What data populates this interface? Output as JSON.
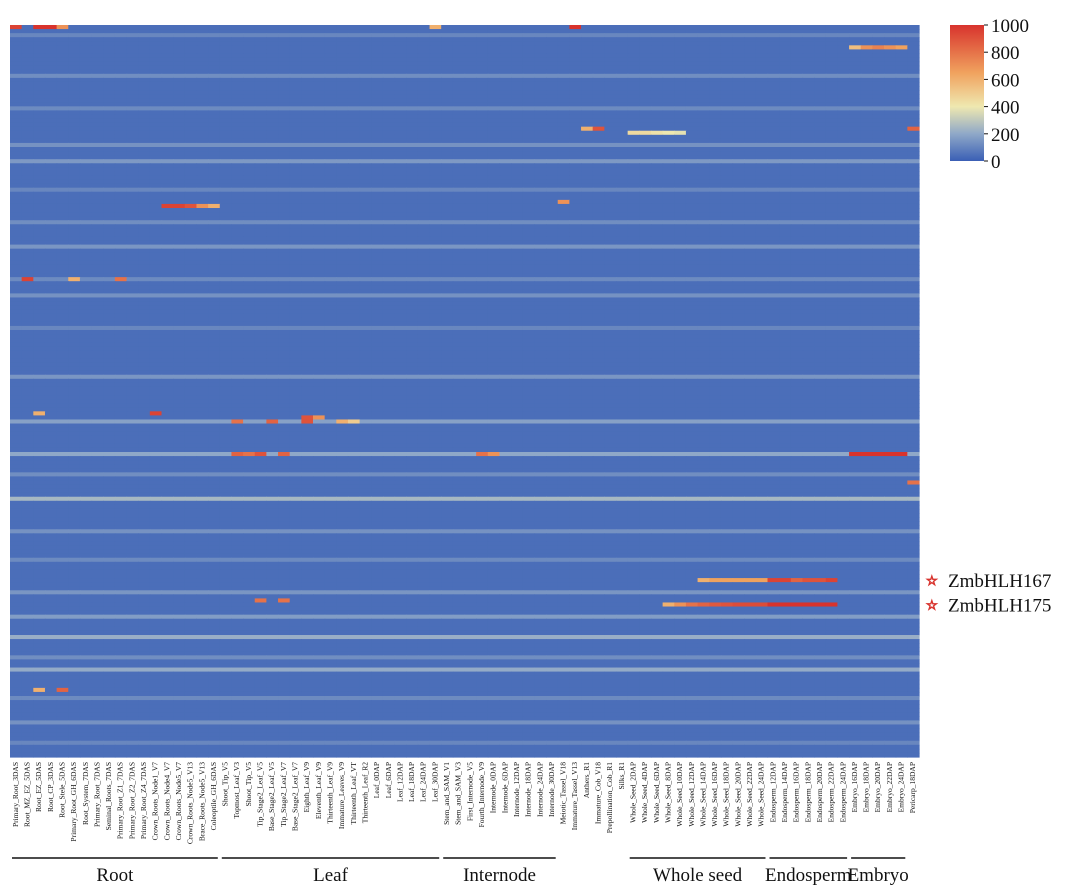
{
  "chart_data": {
    "type": "heatmap",
    "title": "",
    "colorbar": {
      "min": 0,
      "max": 1000,
      "ticks": [
        "1000",
        "800",
        "600",
        "400",
        "200",
        "0"
      ],
      "colors": [
        "#3a5fb5",
        "#8fa8c8",
        "#efe8b0",
        "#f0a25e",
        "#d8332d"
      ]
    },
    "columns": [
      "Primary_Root_3DAS",
      "Root_MZ_EZ_5DAS",
      "Root_EZ_5DAS",
      "Root_CP_3DAS",
      "Root_Stele_5DAS",
      "Primary_Root_GH_6DAS",
      "Root_System_7DAS",
      "Primary_Root_7DAS",
      "Seminal_Roots_7DAS",
      "Primary_Root_Z1_7DAS",
      "Primary_Root_Z2_7DAS",
      "Primary_Root_Z4_7DAS",
      "Crown_Roots_Node1_V7",
      "Crown_Roots_Node4_V7",
      "Crown_Roots_Node5_V7",
      "Crown_Roots_Node5_V13",
      "Brace_Roots_Node5_V13",
      "Coleoptile_GH_6DAS",
      "Shoot_Tip_V5",
      "Topmost_Leaf_V3",
      "Shoot_Tip_V5",
      "Tip_Stage2_Leaf_V5",
      "Base_Stage2_Leaf_V5",
      "Tip_Stage2_Leaf_V7",
      "Base_Stage2_Leaf_V7",
      "Eighth_Leaf_V9",
      "Eleventh_Leaf_V9",
      "Thirteenth_Leaf_V9",
      "Immature_Leaves_V9",
      "Thirteenth_Leaf_VT",
      "Thirteenth_Leaf_R2",
      "Leaf_0DAP",
      "Leaf_6DAP",
      "Leaf_12DAP",
      "Leaf_18DAP",
      "Leaf_24DAP",
      "Leaf_30DAP",
      "Stem_and_SAM_V1",
      "Stem_and_SAM_V3",
      "First_Internode_V5",
      "Fourth_Internode_V9",
      "Internode_0DAP",
      "Internode_6DAP",
      "Internode_12DAP",
      "Internode_18DAP",
      "Internode_24DAP",
      "Internode_30DAP",
      "Meiotic_Tassel_V18",
      "Immature_Tassel_V13",
      "Anthers_R1",
      "Immature_Cob_V18",
      "Prepollination_Cob_R1",
      "Silks_R1",
      "Whole_Seed_2DAP",
      "Whole_Seed_4DAP",
      "Whole_Seed_6DAP",
      "Whole_Seed_8DAP",
      "Whole_Seed_10DAP",
      "Whole_Seed_12DAP",
      "Whole_Seed_14DAP",
      "Whole_Seed_16DAP",
      "Whole_Seed_18DAP",
      "Whole_Seed_20DAP",
      "Whole_Seed_22DAP",
      "Whole_Seed_24DAP",
      "Endosperm_12DAP",
      "Endosperm_14DAP",
      "Endosperm_16DAP",
      "Endosperm_18DAP",
      "Endosperm_20DAP",
      "Endosperm_22DAP",
      "Endosperm_24DAP",
      "Embryo_16DAP",
      "Embryo_18DAP",
      "Embryo_20DAP",
      "Embryo_22DAP",
      "Embryo_24DAP",
      "Pericarp_18DAP"
    ],
    "groups": [
      {
        "label": "Root",
        "from": 0,
        "to": 17
      },
      {
        "label": "Leaf",
        "from": 18,
        "to": 36
      },
      {
        "label": "Internode",
        "from": 37,
        "to": 46
      },
      {
        "label": "Whole seed",
        "from": 53,
        "to": 64
      },
      {
        "label": "Endosperm",
        "from": 65,
        "to": 71
      },
      {
        "label": "Embryo",
        "from": 72,
        "to": 76
      }
    ],
    "n_rows": 180,
    "background_value": 40,
    "bands": [
      {
        "row": 2,
        "value": 110
      },
      {
        "row": 12,
        "value": 130
      },
      {
        "row": 20,
        "value": 120
      },
      {
        "row": 29,
        "value": 140
      },
      {
        "row": 33,
        "value": 160
      },
      {
        "row": 40,
        "value": 110
      },
      {
        "row": 48,
        "value": 130
      },
      {
        "row": 54,
        "value": 150
      },
      {
        "row": 62,
        "value": 120
      },
      {
        "row": 66,
        "value": 140
      },
      {
        "row": 74,
        "value": 110
      },
      {
        "row": 86,
        "value": 150
      },
      {
        "row": 97,
        "value": 180
      },
      {
        "row": 105,
        "value": 200
      },
      {
        "row": 110,
        "value": 130
      },
      {
        "row": 116,
        "value": 250
      },
      {
        "row": 124,
        "value": 140
      },
      {
        "row": 131,
        "value": 120
      },
      {
        "row": 139,
        "value": 150
      },
      {
        "row": 145,
        "value": 170
      },
      {
        "row": 150,
        "value": 220
      },
      {
        "row": 155,
        "value": 130
      },
      {
        "row": 158,
        "value": 210
      },
      {
        "row": 165,
        "value": 120
      },
      {
        "row": 171,
        "value": 140
      },
      {
        "row": 176,
        "value": 110
      }
    ],
    "cells": [
      {
        "row": 0,
        "col": 0,
        "value": 950
      },
      {
        "row": 0,
        "col": 2,
        "value": 1000
      },
      {
        "row": 0,
        "col": 3,
        "value": 1000
      },
      {
        "row": 0,
        "col": 4,
        "value": 700
      },
      {
        "row": 0,
        "col": 48,
        "value": 1000
      },
      {
        "row": 0,
        "col": 36,
        "value": 600
      },
      {
        "row": 5,
        "col": 72,
        "value": 550
      },
      {
        "row": 5,
        "col": 73,
        "value": 700
      },
      {
        "row": 5,
        "col": 74,
        "value": 750
      },
      {
        "row": 5,
        "col": 75,
        "value": 700
      },
      {
        "row": 5,
        "col": 76,
        "value": 650
      },
      {
        "row": 25,
        "col": 50,
        "value": 900
      },
      {
        "row": 25,
        "col": 49,
        "value": 600
      },
      {
        "row": 25,
        "col": 77,
        "value": 850
      },
      {
        "row": 26,
        "col": 53,
        "value": 450
      },
      {
        "row": 26,
        "col": 54,
        "value": 450
      },
      {
        "row": 26,
        "col": 55,
        "value": 420
      },
      {
        "row": 26,
        "col": 56,
        "value": 400
      },
      {
        "row": 26,
        "col": 57,
        "value": 380
      },
      {
        "row": 43,
        "col": 47,
        "value": 700
      },
      {
        "row": 44,
        "col": 13,
        "value": 950
      },
      {
        "row": 44,
        "col": 14,
        "value": 950
      },
      {
        "row": 44,
        "col": 15,
        "value": 900
      },
      {
        "row": 44,
        "col": 16,
        "value": 700
      },
      {
        "row": 44,
        "col": 17,
        "value": 600
      },
      {
        "row": 62,
        "col": 1,
        "value": 950
      },
      {
        "row": 62,
        "col": 5,
        "value": 600
      },
      {
        "row": 62,
        "col": 9,
        "value": 800
      },
      {
        "row": 95,
        "col": 12,
        "value": 950
      },
      {
        "row": 95,
        "col": 2,
        "value": 600
      },
      {
        "row": 96,
        "col": 25,
        "value": 900
      },
      {
        "row": 96,
        "col": 26,
        "value": 700
      },
      {
        "row": 97,
        "col": 19,
        "value": 800
      },
      {
        "row": 97,
        "col": 22,
        "value": 850
      },
      {
        "row": 97,
        "col": 25,
        "value": 900
      },
      {
        "row": 97,
        "col": 28,
        "value": 600
      },
      {
        "row": 97,
        "col": 29,
        "value": 500
      },
      {
        "row": 105,
        "col": 19,
        "value": 850
      },
      {
        "row": 105,
        "col": 20,
        "value": 800
      },
      {
        "row": 105,
        "col": 21,
        "value": 900
      },
      {
        "row": 105,
        "col": 23,
        "value": 850
      },
      {
        "row": 105,
        "col": 40,
        "value": 800
      },
      {
        "row": 105,
        "col": 41,
        "value": 700
      },
      {
        "row": 105,
        "col": 72,
        "value": 1000
      },
      {
        "row": 105,
        "col": 73,
        "value": 1000
      },
      {
        "row": 105,
        "col": 74,
        "value": 1000
      },
      {
        "row": 105,
        "col": 75,
        "value": 1000
      },
      {
        "row": 105,
        "col": 76,
        "value": 1000
      },
      {
        "row": 112,
        "col": 77,
        "value": 800
      },
      {
        "row": 136,
        "col": 59,
        "value": 600
      },
      {
        "row": 136,
        "col": 60,
        "value": 650
      },
      {
        "row": 136,
        "col": 61,
        "value": 650
      },
      {
        "row": 136,
        "col": 62,
        "value": 650
      },
      {
        "row": 136,
        "col": 63,
        "value": 650
      },
      {
        "row": 136,
        "col": 64,
        "value": 650
      },
      {
        "row": 136,
        "col": 65,
        "value": 950
      },
      {
        "row": 136,
        "col": 66,
        "value": 950
      },
      {
        "row": 136,
        "col": 67,
        "value": 850
      },
      {
        "row": 136,
        "col": 68,
        "value": 900
      },
      {
        "row": 136,
        "col": 69,
        "value": 900
      },
      {
        "row": 136,
        "col": 70,
        "value": 950
      },
      {
        "row": 141,
        "col": 21,
        "value": 800
      },
      {
        "row": 141,
        "col": 23,
        "value": 800
      },
      {
        "row": 142,
        "col": 56,
        "value": 600
      },
      {
        "row": 142,
        "col": 57,
        "value": 700
      },
      {
        "row": 142,
        "col": 58,
        "value": 800
      },
      {
        "row": 142,
        "col": 59,
        "value": 850
      },
      {
        "row": 142,
        "col": 60,
        "value": 880
      },
      {
        "row": 142,
        "col": 61,
        "value": 900
      },
      {
        "row": 142,
        "col": 62,
        "value": 920
      },
      {
        "row": 142,
        "col": 63,
        "value": 920
      },
      {
        "row": 142,
        "col": 64,
        "value": 920
      },
      {
        "row": 142,
        "col": 65,
        "value": 1000
      },
      {
        "row": 142,
        "col": 66,
        "value": 1000
      },
      {
        "row": 142,
        "col": 67,
        "value": 1000
      },
      {
        "row": 142,
        "col": 68,
        "value": 1000
      },
      {
        "row": 142,
        "col": 69,
        "value": 1000
      },
      {
        "row": 142,
        "col": 70,
        "value": 1000
      },
      {
        "row": 163,
        "col": 4,
        "value": 850
      },
      {
        "row": 163,
        "col": 2,
        "value": 600
      }
    ],
    "annotations": [
      {
        "label": "ZmbHLH167",
        "row": 136
      },
      {
        "label": "ZmbHLH175",
        "row": 142
      }
    ],
    "grid": false
  }
}
